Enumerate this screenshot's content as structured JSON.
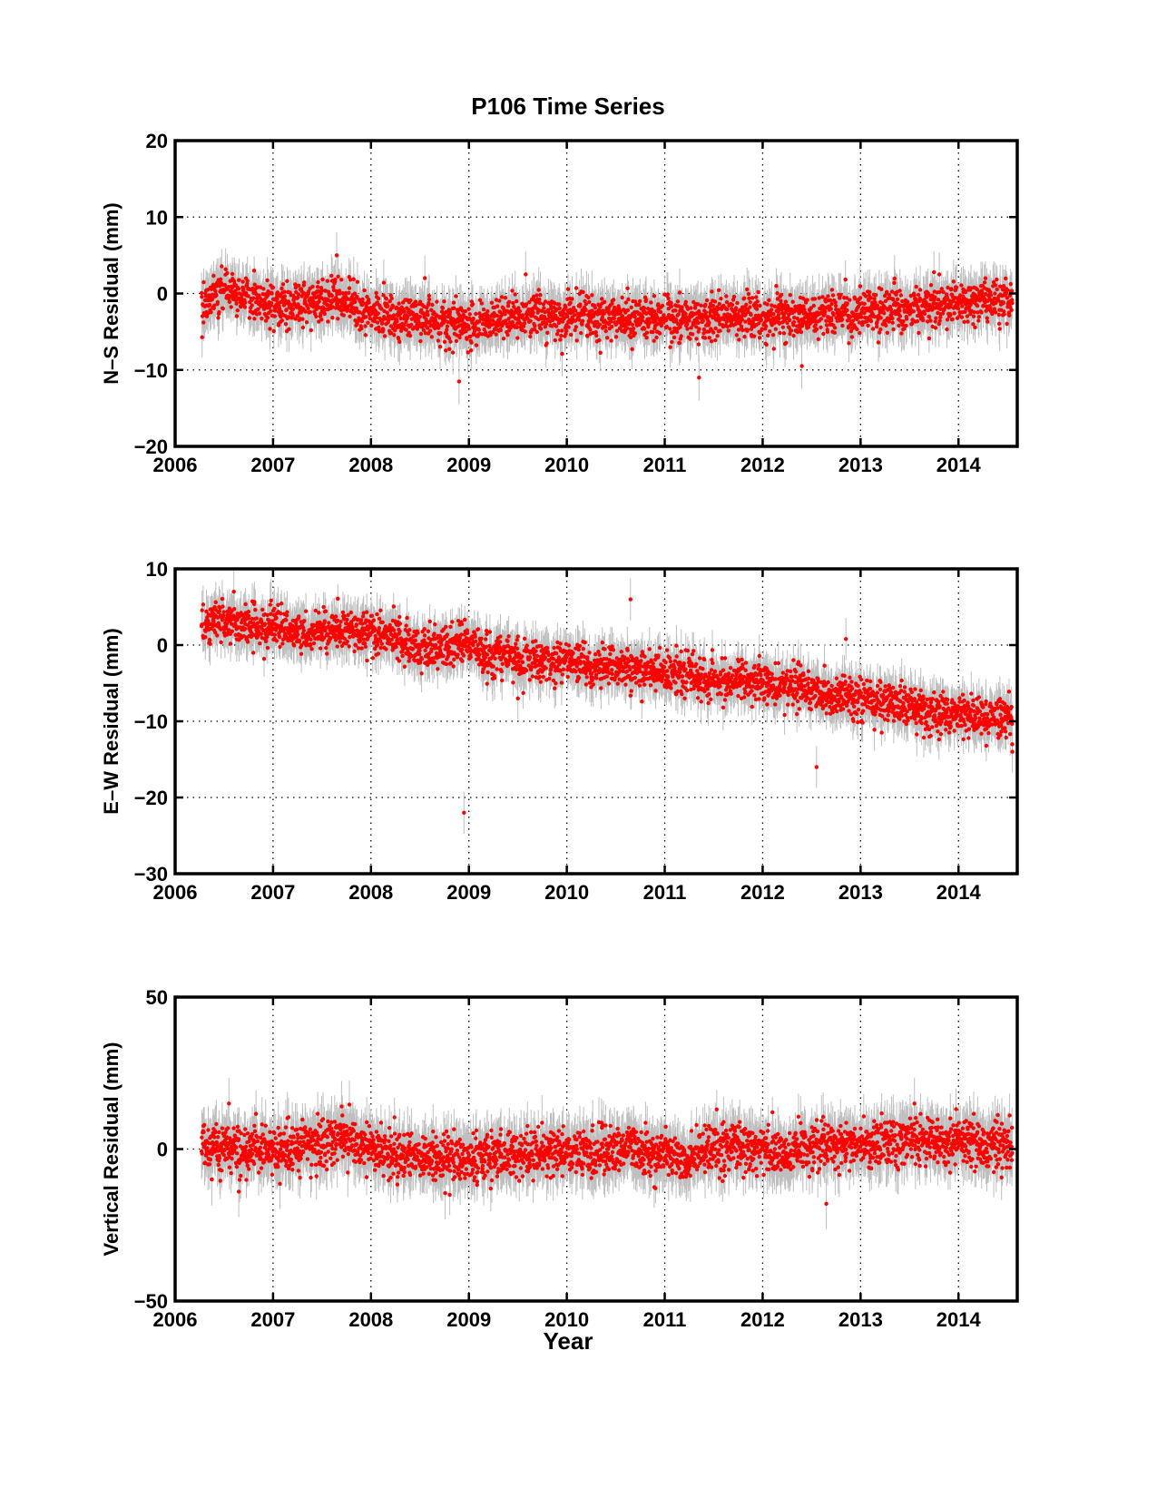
{
  "figure": {
    "title": "P106 Time Series",
    "xlabel": "Year",
    "colors": {
      "points": "#ff0000",
      "errorbars": "#bfbfbf",
      "axes": "#000000",
      "grid": "#000000"
    }
  },
  "chart_data": [
    {
      "type": "scatter",
      "title": "P106 Time Series",
      "xlabel": "",
      "ylabel": "N–S Residual (mm)",
      "xlim": [
        2006,
        2014.6
      ],
      "ylim": [
        -20,
        20
      ],
      "xticks": [
        2006,
        2007,
        2008,
        2009,
        2010,
        2011,
        2012,
        2013,
        2014
      ],
      "xtick_labels": [
        "2006",
        "2007",
        "2008",
        "2009",
        "2010",
        "2011",
        "2012",
        "2013",
        "2014"
      ],
      "yticks": [
        -20,
        -10,
        0,
        10,
        20
      ],
      "ytick_labels": [
        "−20",
        "−10",
        "0",
        "10",
        "20"
      ],
      "grid": true,
      "error_bars": true,
      "data_start": 2006.27,
      "data_end": 2014.55,
      "trend": [
        [
          2006.3,
          -1.2
        ],
        [
          2006.5,
          0.5
        ],
        [
          2006.8,
          -0.5
        ],
        [
          2007.0,
          -1.5
        ],
        [
          2007.3,
          -1.5
        ],
        [
          2007.7,
          -1.0
        ],
        [
          2008.0,
          -2.5
        ],
        [
          2008.5,
          -3.5
        ],
        [
          2009.0,
          -4.0
        ],
        [
          2009.5,
          -3.0
        ],
        [
          2010.0,
          -3.0
        ],
        [
          2010.5,
          -3.0
        ],
        [
          2011.0,
          -3.5
        ],
        [
          2011.5,
          -3.0
        ],
        [
          2012.0,
          -3.0
        ],
        [
          2012.5,
          -3.0
        ],
        [
          2013.0,
          -2.5
        ],
        [
          2013.5,
          -2.0
        ],
        [
          2014.0,
          -1.5
        ],
        [
          2014.55,
          -1.0
        ]
      ],
      "scatter_sd": 1.4,
      "error_sd": 2.5,
      "outliers": [
        [
          2007.65,
          5.0
        ],
        [
          2008.9,
          -11.5
        ],
        [
          2009.58,
          2.5
        ],
        [
          2011.35,
          -11.0
        ],
        [
          2008.55,
          2.0
        ],
        [
          2012.4,
          -9.5
        ]
      ]
    },
    {
      "type": "scatter",
      "xlabel": "",
      "ylabel": "E–W Residual (mm)",
      "xlim": [
        2006,
        2014.6
      ],
      "ylim": [
        -30,
        10
      ],
      "xticks": [
        2006,
        2007,
        2008,
        2009,
        2010,
        2011,
        2012,
        2013,
        2014
      ],
      "xtick_labels": [
        "2006",
        "2007",
        "2008",
        "2009",
        "2010",
        "2011",
        "2012",
        "2013",
        "2014"
      ],
      "yticks": [
        -30,
        -20,
        -10,
        0,
        10
      ],
      "ytick_labels": [
        "−30",
        "−20",
        "−10",
        "0",
        "10"
      ],
      "grid": true,
      "error_bars": true,
      "data_start": 2006.27,
      "data_end": 2014.55,
      "trend": [
        [
          2006.3,
          3.0
        ],
        [
          2006.6,
          3.0
        ],
        [
          2007.0,
          2.5
        ],
        [
          2007.3,
          1.5
        ],
        [
          2007.8,
          2.0
        ],
        [
          2008.0,
          2.0
        ],
        [
          2008.5,
          -0.5
        ],
        [
          2009.0,
          0.0
        ],
        [
          2009.5,
          -2.0
        ],
        [
          2010.0,
          -2.0
        ],
        [
          2010.5,
          -3.0
        ],
        [
          2011.0,
          -3.5
        ],
        [
          2011.5,
          -4.5
        ],
        [
          2012.0,
          -5.0
        ],
        [
          2012.5,
          -6.0
        ],
        [
          2013.0,
          -7.0
        ],
        [
          2013.5,
          -8.0
        ],
        [
          2014.0,
          -9.0
        ],
        [
          2014.55,
          -9.5
        ]
      ],
      "scatter_sd": 1.3,
      "error_sd": 2.3,
      "outliers": [
        [
          2008.95,
          -22.0
        ],
        [
          2010.65,
          6.0
        ],
        [
          2012.55,
          -16.0
        ],
        [
          2012.85,
          0.8
        ],
        [
          2006.6,
          7.0
        ],
        [
          2014.55,
          -14.0
        ],
        [
          2009.5,
          -7.0
        ]
      ]
    },
    {
      "type": "scatter",
      "xlabel": "Year",
      "ylabel": "Vertical Residual (mm)",
      "xlim": [
        2006,
        2014.6
      ],
      "ylim": [
        -50,
        50
      ],
      "xticks": [
        2006,
        2007,
        2008,
        2009,
        2010,
        2011,
        2012,
        2013,
        2014
      ],
      "xtick_labels": [
        "2006",
        "2007",
        "2008",
        "2009",
        "2010",
        "2011",
        "2012",
        "2013",
        "2014"
      ],
      "yticks": [
        -50,
        0,
        50
      ],
      "ytick_labels": [
        "−50",
        "0",
        "50"
      ],
      "grid": true,
      "error_bars": true,
      "data_start": 2006.27,
      "data_end": 2014.55,
      "trend": [
        [
          2006.3,
          2.0
        ],
        [
          2006.7,
          -1.0
        ],
        [
          2007.0,
          1.0
        ],
        [
          2007.5,
          1.0
        ],
        [
          2007.7,
          4.0
        ],
        [
          2008.0,
          0.0
        ],
        [
          2008.5,
          -3.0
        ],
        [
          2009.0,
          -3.0
        ],
        [
          2009.5,
          -2.0
        ],
        [
          2010.0,
          -1.0
        ],
        [
          2010.5,
          0.0
        ],
        [
          2011.0,
          -1.0
        ],
        [
          2011.2,
          -4.0
        ],
        [
          2011.5,
          1.0
        ],
        [
          2012.0,
          0.0
        ],
        [
          2012.2,
          -2.0
        ],
        [
          2012.5,
          2.0
        ],
        [
          2013.0,
          1.0
        ],
        [
          2013.5,
          3.0
        ],
        [
          2014.0,
          2.0
        ],
        [
          2014.55,
          1.0
        ]
      ],
      "scatter_sd": 3.8,
      "error_sd": 7.0,
      "outliers": [
        [
          2006.55,
          15.0
        ],
        [
          2007.7,
          14.0
        ],
        [
          2012.65,
          -18.0
        ],
        [
          2013.55,
          15.0
        ],
        [
          2006.65,
          -14.0
        ]
      ]
    }
  ]
}
